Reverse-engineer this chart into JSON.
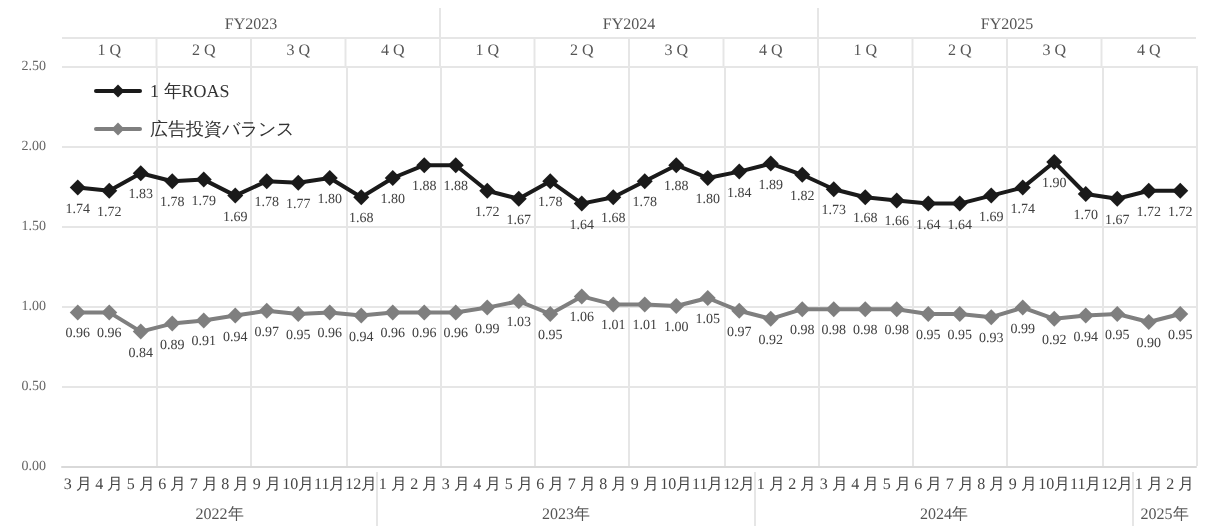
{
  "chart_data": {
    "type": "line",
    "categories": [
      "3 月",
      "4 月",
      "5 月",
      "6 月",
      "7 月",
      "8 月",
      "9 月",
      "10月",
      "11月",
      "12月",
      "1 月",
      "2 月",
      "3 月",
      "4 月",
      "5 月",
      "6 月",
      "7 月",
      "8 月",
      "9 月",
      "10月",
      "11月",
      "12月",
      "1 月",
      "2 月",
      "3 月",
      "4 月",
      "5 月",
      "6 月",
      "7 月",
      "8 月",
      "9 月",
      "10月",
      "11月",
      "12月",
      "1 月",
      "2 月"
    ],
    "series": [
      {
        "name": "1 年ROAS",
        "color": "#1a1a1a",
        "values": [
          1.74,
          1.72,
          1.83,
          1.78,
          1.79,
          1.69,
          1.78,
          1.77,
          1.8,
          1.68,
          1.8,
          1.88,
          1.88,
          1.72,
          1.67,
          1.78,
          1.64,
          1.68,
          1.78,
          1.88,
          1.8,
          1.84,
          1.89,
          1.82,
          1.73,
          1.68,
          1.66,
          1.64,
          1.64,
          1.69,
          1.74,
          1.9,
          1.7,
          1.67,
          1.72,
          1.72
        ],
        "value_labels": [
          "1.74",
          "1.72",
          "1.83",
          "1.78",
          "1.79",
          "1.69",
          "1.78",
          "1.77",
          "1.80",
          "1.68",
          "1.80",
          "1.88",
          "1.88",
          "1.72",
          "1.67",
          "1.78",
          "1.64",
          "1.68",
          "1.78",
          "1.88",
          "1.80",
          "1.84",
          "1.89",
          "1.82",
          "1.73",
          "1.68",
          "1.66",
          "1.64",
          "1.64",
          "1.69",
          "1.74",
          "1.90",
          "1.70",
          "1.67",
          "1.72",
          "1.72"
        ]
      },
      {
        "name": "広告投資バランス",
        "color": "#7f7f7f",
        "values": [
          0.96,
          0.96,
          0.84,
          0.89,
          0.91,
          0.94,
          0.97,
          0.95,
          0.96,
          0.94,
          0.96,
          0.96,
          0.96,
          0.99,
          1.03,
          0.95,
          1.06,
          1.01,
          1.01,
          1.0,
          1.05,
          0.97,
          0.92,
          0.98,
          0.98,
          0.98,
          0.98,
          0.95,
          0.95,
          0.93,
          0.99,
          0.92,
          0.94,
          0.95,
          0.9,
          0.95
        ],
        "value_labels": [
          "0.96",
          "0.96",
          "0.84",
          "0.89",
          "0.91",
          "0.94",
          "0.97",
          "0.95",
          "0.96",
          "0.94",
          "0.96",
          "0.96",
          "0.96",
          "0.99",
          "1.03",
          "0.95",
          "1.06",
          "1.01",
          "1.01",
          "1.00",
          "1.05",
          "0.97",
          "0.92",
          "0.98",
          "0.98",
          "0.98",
          "0.98",
          "0.95",
          "0.95",
          "0.93",
          "0.99",
          "0.92",
          "0.94",
          "0.95",
          "0.90",
          "0.95"
        ]
      }
    ],
    "ylim": [
      0,
      2.5
    ],
    "yticks": [
      {
        "value": 0,
        "label": "0.00"
      },
      {
        "value": 0.5,
        "label": "0.50"
      },
      {
        "value": 1,
        "label": "1.00"
      },
      {
        "value": 1.5,
        "label": "1.50"
      },
      {
        "value": 2,
        "label": "2.00"
      },
      {
        "value": 2.5,
        "label": "2.50"
      }
    ],
    "grid": true,
    "legend": "top left",
    "marker": "diamond",
    "line_style": "solid",
    "annotations": [
      "FY2023",
      "FY2024",
      "FY2025",
      "1 Q",
      "2 Q",
      "3 Q",
      "4 Q",
      "1 Q",
      "2 Q",
      "3 Q",
      "4 Q",
      "1 Q",
      "2 Q",
      "3 Q",
      "4 Q",
      "2022年",
      "2023年",
      "2024年",
      "2025年"
    ]
  }
}
